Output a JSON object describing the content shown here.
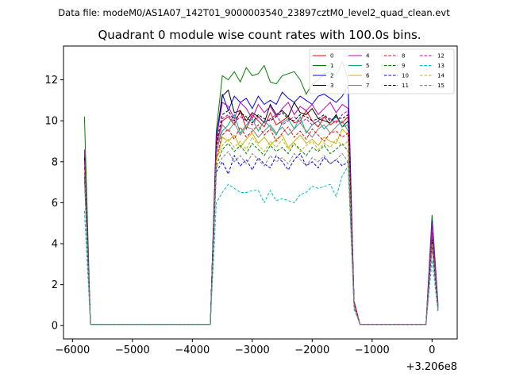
{
  "header": {
    "datafile": "Data file: modeM0/AS1A07_142T01_9000003540_23897cztM0_level2_quad_clean.evt",
    "title": "Quadrant 0 module wise count rates with 100.0s bins."
  },
  "chart_data": {
    "type": "line",
    "title": "Quadrant 0 module wise count rates with 100.0s bins.",
    "xlabel": "",
    "ylabel": "",
    "x_offset_label": "+3.206e8",
    "xlim": [
      -6150,
      420
    ],
    "ylim": [
      -0.65,
      13.65
    ],
    "x_ticks": [
      -6000,
      -5000,
      -4000,
      -3000,
      -2000,
      -1000,
      0
    ],
    "x_tick_labels": [
      "−6000",
      "−5000",
      "−4000",
      "−3000",
      "−2000",
      "−1000",
      "0"
    ],
    "y_ticks": [
      0,
      2,
      4,
      6,
      8,
      10,
      12
    ],
    "y_tick_labels": [
      "0",
      "2",
      "4",
      "6",
      "8",
      "10",
      "12"
    ],
    "grid": false,
    "legend_placement": "top-right",
    "x_note": "x values are seconds relative to 3.206e8",
    "x": [
      -5800,
      -5700,
      -3700,
      -3600,
      -3500,
      -3400,
      -3300,
      -3200,
      -3100,
      -3000,
      -2900,
      -2800,
      -2700,
      -2600,
      -2500,
      -2400,
      -2300,
      -2200,
      -2100,
      -2000,
      -1900,
      -1800,
      -1700,
      -1600,
      -1500,
      -1400,
      -1300,
      -1200,
      -1100,
      -100,
      0,
      100
    ],
    "series": [
      {
        "name": "0",
        "color": "#ff0000",
        "dash": "solid",
        "values": [
          8.3,
          0.05,
          0.05,
          8.8,
          10.0,
          10.2,
          9.8,
          10.5,
          9.6,
          10.3,
          10.0,
          9.7,
          10.4,
          9.8,
          10.0,
          10.2,
          9.9,
          10.0,
          10.5,
          10.0,
          9.7,
          10.2,
          9.8,
          10.0,
          9.9,
          10.2,
          1.2,
          0.05,
          0.05,
          0.05,
          4.5,
          0.9
        ]
      },
      {
        "name": "1",
        "color": "#008000",
        "dash": "solid",
        "values": [
          10.2,
          0.05,
          0.05,
          9.5,
          12.2,
          12.0,
          12.4,
          11.9,
          12.6,
          12.2,
          12.3,
          12.7,
          11.9,
          11.8,
          12.2,
          12.3,
          12.4,
          12.0,
          11.3,
          11.8,
          12.0,
          12.3,
          12.4,
          12.2,
          12.9,
          12.0,
          1.0,
          0.05,
          0.05,
          0.05,
          5.4,
          1.1
        ]
      },
      {
        "name": "2",
        "color": "#0000ff",
        "dash": "solid",
        "values": [
          8.1,
          0.05,
          0.05,
          9.2,
          11.3,
          10.5,
          11.2,
          10.9,
          11.1,
          10.6,
          11.2,
          10.8,
          11.0,
          10.8,
          11.4,
          11.1,
          10.9,
          11.2,
          11.0,
          10.8,
          11.2,
          11.3,
          11.1,
          10.9,
          11.2,
          11.7,
          1.1,
          0.05,
          0.05,
          0.05,
          5.1,
          1.0
        ]
      },
      {
        "name": "3",
        "color": "#000000",
        "dash": "solid",
        "values": [
          8.5,
          0.05,
          0.05,
          9.0,
          11.2,
          11.5,
          10.4,
          10.5,
          10.0,
          10.4,
          10.2,
          9.9,
          10.8,
          10.3,
          10.5,
          10.2,
          10.9,
          10.4,
          10.3,
          10.6,
          10.1,
          10.0,
          9.9,
          10.3,
          9.7,
          10.0,
          1.1,
          0.05,
          0.05,
          0.05,
          4.3,
          0.9
        ]
      },
      {
        "name": "4",
        "color": "#c000c0",
        "dash": "solid",
        "values": [
          8.6,
          0.05,
          0.05,
          9.1,
          10.9,
          10.7,
          10.1,
          10.9,
          10.6,
          10.1,
          10.8,
          10.4,
          10.7,
          10.2,
          10.6,
          10.9,
          10.3,
          10.7,
          10.5,
          10.8,
          10.3,
          10.6,
          10.9,
          10.4,
          10.8,
          10.6,
          1.1,
          0.05,
          0.05,
          0.05,
          5.0,
          1.0
        ]
      },
      {
        "name": "5",
        "color": "#00b080",
        "dash": "solid",
        "values": [
          8.0,
          0.05,
          0.05,
          8.5,
          9.5,
          9.8,
          10.3,
          9.4,
          9.8,
          10.1,
          9.5,
          10.0,
          9.7,
          9.3,
          9.9,
          10.1,
          9.6,
          10.2,
          9.4,
          9.8,
          10.0,
          9.6,
          9.9,
          10.2,
          9.7,
          9.8,
          1.0,
          0.05,
          0.05,
          0.05,
          4.2,
          0.9
        ]
      },
      {
        "name": "6",
        "color": "#c8b400",
        "dash": "solid",
        "values": [
          7.5,
          0.05,
          0.05,
          8.0,
          9.2,
          9.0,
          9.3,
          8.7,
          9.1,
          9.4,
          8.9,
          9.2,
          8.8,
          9.1,
          9.3,
          8.7,
          9.0,
          9.3,
          8.9,
          9.1,
          8.8,
          9.2,
          9.0,
          8.9,
          9.6,
          9.3,
          1.0,
          0.05,
          0.05,
          0.05,
          4.1,
          0.9
        ]
      },
      {
        "name": "7",
        "color": "#808080",
        "dash": "solid",
        "values": [
          7.9,
          0.05,
          0.05,
          8.4,
          9.8,
          9.5,
          9.9,
          9.3,
          9.7,
          9.6,
          9.2,
          9.5,
          9.8,
          9.4,
          9.7,
          9.3,
          9.6,
          9.9,
          9.5,
          9.2,
          9.6,
          9.8,
          9.4,
          9.7,
          10.0,
          9.5,
          1.0,
          0.05,
          0.05,
          0.05,
          4.4,
          0.9
        ]
      },
      {
        "name": "8",
        "color": "#ff0000",
        "dash": "dashed",
        "values": [
          7.7,
          0.05,
          0.05,
          8.2,
          9.3,
          9.6,
          9.1,
          9.7,
          9.2,
          9.5,
          9.8,
          9.3,
          9.6,
          9.0,
          9.4,
          9.7,
          9.2,
          9.5,
          9.1,
          9.6,
          9.3,
          9.0,
          9.4,
          9.5,
          9.2,
          9.4,
          1.0,
          0.05,
          0.05,
          0.05,
          4.0,
          0.8
        ]
      },
      {
        "name": "9",
        "color": "#008000",
        "dash": "dashed",
        "values": [
          7.3,
          0.05,
          0.05,
          7.8,
          8.6,
          8.9,
          8.5,
          8.8,
          8.4,
          8.9,
          8.6,
          8.3,
          8.8,
          8.5,
          8.7,
          8.4,
          8.9,
          8.6,
          8.3,
          8.7,
          8.5,
          8.8,
          8.4,
          8.6,
          8.9,
          8.5,
          1.0,
          0.05,
          0.05,
          0.05,
          4.1,
          0.8
        ]
      },
      {
        "name": "10",
        "color": "#0000ff",
        "dash": "dashed",
        "values": [
          7.2,
          0.05,
          0.05,
          7.5,
          8.0,
          7.4,
          8.3,
          7.8,
          8.1,
          7.6,
          8.2,
          7.9,
          7.7,
          8.3,
          8.0,
          7.6,
          8.1,
          8.4,
          7.8,
          8.0,
          7.7,
          8.2,
          7.9,
          8.1,
          7.8,
          8.0,
          0.9,
          0.05,
          0.05,
          0.05,
          3.9,
          0.8
        ]
      },
      {
        "name": "11",
        "color": "#000000",
        "dash": "dashed",
        "values": [
          8.2,
          0.05,
          0.05,
          8.9,
          10.3,
          10.5,
          10.0,
          10.4,
          10.2,
          9.9,
          10.3,
          10.1,
          10.0,
          10.2,
          10.4,
          10.1,
          10.0,
          10.3,
          10.2,
          10.0,
          10.1,
          10.3,
          10.0,
          10.2,
          10.1,
          10.3,
          1.0,
          0.05,
          0.05,
          0.05,
          4.2,
          0.7
        ]
      },
      {
        "name": "12",
        "color": "#c000c0",
        "dash": "dashed",
        "values": [
          8.0,
          0.05,
          0.05,
          8.6,
          10.1,
          10.3,
          9.9,
          10.2,
          10.0,
          9.8,
          10.2,
          9.9,
          10.1,
          10.3,
          9.8,
          10.0,
          10.2,
          9.9,
          10.1,
          9.8,
          10.0,
          10.2,
          10.1,
          9.9,
          10.3,
          10.5,
          1.0,
          0.05,
          0.05,
          0.05,
          4.6,
          0.9
        ]
      },
      {
        "name": "13",
        "color": "#00c0c0",
        "dash": "dashed",
        "values": [
          5.6,
          0.05,
          0.05,
          6.0,
          6.5,
          6.9,
          6.7,
          6.5,
          6.5,
          6.6,
          6.6,
          6.0,
          6.6,
          6.1,
          6.2,
          6.1,
          6.0,
          6.4,
          6.5,
          6.8,
          6.7,
          6.8,
          6.9,
          6.3,
          7.3,
          7.8,
          0.8,
          0.05,
          0.05,
          0.05,
          3.2,
          0.7
        ]
      },
      {
        "name": "14",
        "color": "#c8b400",
        "dash": "dashed",
        "values": [
          7.6,
          0.05,
          0.05,
          8.1,
          8.8,
          9.1,
          8.7,
          9.0,
          8.6,
          9.2,
          8.8,
          8.5,
          9.0,
          8.7,
          9.1,
          8.6,
          8.9,
          8.5,
          8.8,
          9.0,
          8.6,
          8.9,
          8.7,
          9.1,
          8.8,
          9.0,
          1.0,
          0.05,
          0.05,
          0.05,
          4.0,
          0.8
        ]
      },
      {
        "name": "15",
        "color": "#808080",
        "dash": "dashed",
        "values": [
          7.4,
          0.05,
          0.05,
          7.7,
          8.2,
          8.5,
          8.0,
          8.3,
          7.9,
          8.4,
          8.1,
          7.8,
          8.3,
          8.0,
          8.2,
          7.9,
          8.4,
          8.1,
          7.8,
          8.2,
          8.0,
          8.3,
          7.9,
          8.1,
          8.4,
          8.0,
          0.9,
          0.05,
          0.05,
          0.05,
          3.8,
          0.8
        ]
      }
    ]
  }
}
